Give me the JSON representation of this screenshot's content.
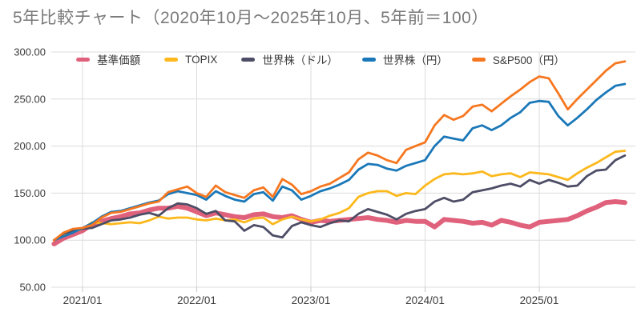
{
  "page": {
    "title": "5年比較チャート（2020年10月～2025年10月、5年前＝100）"
  },
  "axes": {
    "y_tick_labels": [
      "300.00",
      "250.00",
      "200.00",
      "150.00",
      "100.00",
      "50.00"
    ],
    "x_tick_labels": [
      "2021/01",
      "2022/01",
      "2023/01",
      "2024/01",
      "2025/01"
    ]
  },
  "colors": {
    "grid": "#dcdcdc",
    "tick": "#c9c9c9",
    "axis_label": "#3c3c3c",
    "title": "#7a7a7a"
  },
  "chart_data": {
    "type": "line",
    "title": "5年比較チャート（2020年10月～2025年10月、5年前＝100）",
    "xlabel": "",
    "ylabel": "",
    "ylim": [
      50,
      300
    ],
    "grid": true,
    "legend_position": "top-center",
    "baseline_note": "5年前＝100",
    "y_ticks": [
      300,
      250,
      200,
      150,
      100,
      50
    ],
    "x_gridline_months": [
      "2021/01",
      "2022/01",
      "2023/01",
      "2024/01",
      "2025/01"
    ],
    "x": [
      "2020/10",
      "2020/11",
      "2020/12",
      "2021/01",
      "2021/02",
      "2021/03",
      "2021/04",
      "2021/05",
      "2021/06",
      "2021/07",
      "2021/08",
      "2021/09",
      "2021/10",
      "2021/11",
      "2021/12",
      "2022/01",
      "2022/02",
      "2022/03",
      "2022/04",
      "2022/05",
      "2022/06",
      "2022/07",
      "2022/08",
      "2022/09",
      "2022/10",
      "2022/11",
      "2022/12",
      "2023/01",
      "2023/02",
      "2023/03",
      "2023/04",
      "2023/05",
      "2023/06",
      "2023/07",
      "2023/08",
      "2023/09",
      "2023/10",
      "2023/11",
      "2023/12",
      "2024/01",
      "2024/02",
      "2024/03",
      "2024/04",
      "2024/05",
      "2024/06",
      "2024/07",
      "2024/08",
      "2024/09",
      "2024/10",
      "2024/11",
      "2024/12",
      "2025/01",
      "2025/02",
      "2025/03",
      "2025/04",
      "2025/05",
      "2025/06",
      "2025/07",
      "2025/08",
      "2025/09",
      "2025/10"
    ],
    "series": [
      {
        "name": "基準価額",
        "slug": "fund-nav",
        "color": "#e0617c",
        "stroke_width": 6,
        "values": [
          96,
          102,
          106,
          110,
          117,
          120,
          123,
          125,
          128,
          129,
          132,
          134,
          134,
          136,
          134,
          130,
          126,
          129,
          127,
          125,
          124,
          127,
          128,
          125,
          124,
          126,
          122,
          119,
          121,
          120,
          121,
          122,
          123,
          124,
          122,
          121,
          119,
          121,
          120,
          120,
          114,
          122,
          121,
          120,
          118,
          119,
          116,
          121,
          119,
          116,
          114,
          119,
          120,
          121,
          122,
          126,
          131,
          135,
          140,
          141,
          140
        ]
      },
      {
        "name": "TOPIX",
        "slug": "topix",
        "color": "#fcb81c",
        "stroke_width": 2.8,
        "values": [
          100,
          105,
          109,
          112,
          119,
          118,
          117,
          118,
          119,
          118,
          121,
          125,
          123,
          124,
          124,
          122,
          121,
          123,
          121,
          122,
          119,
          123,
          124,
          117,
          122,
          125,
          122,
          120,
          122,
          126,
          129,
          134,
          146,
          150,
          152,
          152,
          147,
          150,
          149,
          158,
          165,
          170,
          171,
          170,
          171,
          173,
          168,
          170,
          171,
          167,
          172,
          171,
          170,
          167,
          164,
          171,
          177,
          182,
          188,
          194,
          195
        ]
      },
      {
        "name": "世界株（ドル）",
        "slug": "world-usd",
        "color": "#4d4d66",
        "stroke_width": 2.8,
        "values": [
          100,
          107,
          110,
          112,
          113,
          117,
          121,
          122,
          124,
          127,
          129,
          126,
          134,
          139,
          138,
          134,
          128,
          131,
          121,
          120,
          110,
          116,
          114,
          105,
          103,
          115,
          119,
          116,
          114,
          118,
          121,
          120,
          128,
          133,
          130,
          127,
          122,
          128,
          131,
          133,
          141,
          145,
          141,
          143,
          151,
          153,
          155,
          158,
          160,
          157,
          164,
          160,
          164,
          161,
          157,
          158,
          168,
          174,
          175,
          185,
          190
        ]
      },
      {
        "name": "世界株（円）",
        "slug": "world-jpy",
        "color": "#1a78b8",
        "stroke_width": 2.8,
        "values": [
          100,
          104,
          108,
          113,
          118,
          125,
          130,
          131,
          134,
          137,
          140,
          142,
          149,
          152,
          150,
          148,
          143,
          152,
          147,
          143,
          141,
          149,
          151,
          142,
          157,
          153,
          143,
          147,
          152,
          155,
          159,
          164,
          175,
          181,
          180,
          176,
          174,
          179,
          182,
          185,
          200,
          210,
          208,
          206,
          219,
          222,
          217,
          222,
          230,
          236,
          246,
          248,
          247,
          232,
          222,
          230,
          239,
          249,
          257,
          264,
          266
        ]
      },
      {
        "name": "S&P500（円）",
        "slug": "sp500-jpy",
        "color": "#f6771f",
        "stroke_width": 2.8,
        "values": [
          100,
          108,
          112,
          113,
          116,
          124,
          129,
          130,
          133,
          136,
          139,
          141,
          151,
          154,
          157,
          150,
          146,
          158,
          151,
          148,
          145,
          153,
          156,
          146,
          165,
          159,
          149,
          152,
          157,
          160,
          166,
          172,
          186,
          193,
          190,
          185,
          182,
          196,
          200,
          204,
          222,
          233,
          228,
          232,
          242,
          244,
          237,
          245,
          253,
          260,
          268,
          274,
          272,
          256,
          239,
          250,
          260,
          270,
          280,
          288,
          290
        ]
      }
    ]
  }
}
